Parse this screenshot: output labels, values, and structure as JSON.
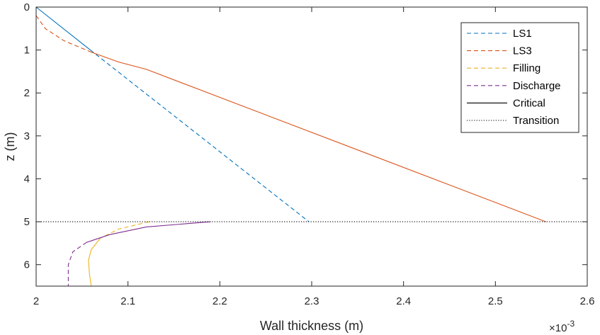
{
  "chart_data": {
    "type": "line",
    "xlabel": "Wall thickness (m)",
    "ylabel": "z (m)",
    "x_exponent": "×10",
    "x_exponent_power": "-3",
    "x_scale_factor": 0.001,
    "xlim": [
      2.0,
      2.6
    ],
    "ylim": [
      0,
      6.5
    ],
    "y_reversed": true,
    "x_ticks": [
      "2",
      "2.1",
      "2.2",
      "2.3",
      "2.4",
      "2.5",
      "2.6"
    ],
    "x_tick_values": [
      2.0,
      2.1,
      2.2,
      2.3,
      2.4,
      2.5,
      2.6
    ],
    "y_ticks": [
      "0",
      "1",
      "2",
      "3",
      "4",
      "5",
      "6"
    ],
    "y_tick_values": [
      0,
      1,
      2,
      3,
      4,
      5,
      6
    ],
    "grid": false,
    "legend_position": "top-right",
    "series": [
      {
        "name": "LS1",
        "color": "#0072BD",
        "points": [
          [
            2.0,
            0.0
          ],
          [
            2.297,
            5.0
          ]
        ],
        "segments": [
          {
            "style": "solid",
            "points": [
              [
                2.0,
                0.0
              ],
              [
                2.059,
                1.0
              ]
            ]
          },
          {
            "style": "dashed",
            "points": [
              [
                2.059,
                1.0
              ],
              [
                2.297,
                5.0
              ]
            ]
          }
        ]
      },
      {
        "name": "LS3",
        "color": "#D95319",
        "points": [
          [
            2.0,
            0.2
          ],
          [
            2.01,
            0.5
          ],
          [
            2.03,
            0.78
          ],
          [
            2.06,
            1.05
          ],
          [
            2.09,
            1.28
          ],
          [
            2.12,
            1.45
          ],
          [
            2.555,
            5.0
          ]
        ],
        "segments": [
          {
            "style": "dashed",
            "points": [
              [
                2.0,
                0.2
              ],
              [
                2.01,
                0.5
              ],
              [
                2.03,
                0.78
              ],
              [
                2.06,
                1.05
              ]
            ]
          },
          {
            "style": "solid",
            "points": [
              [
                2.06,
                1.05
              ],
              [
                2.09,
                1.28
              ],
              [
                2.12,
                1.45
              ],
              [
                2.555,
                5.0
              ]
            ]
          }
        ]
      },
      {
        "name": "Filling",
        "color": "#EDB120",
        "points": [
          [
            2.123,
            5.0
          ],
          [
            2.09,
            5.17
          ],
          [
            2.07,
            5.38
          ],
          [
            2.06,
            5.65
          ],
          [
            2.057,
            5.9
          ],
          [
            2.058,
            6.2
          ],
          [
            2.06,
            6.5
          ]
        ],
        "segments": [
          {
            "style": "dashed",
            "points": [
              [
                2.123,
                5.0
              ],
              [
                2.09,
                5.17
              ],
              [
                2.07,
                5.38
              ]
            ]
          },
          {
            "style": "solid",
            "points": [
              [
                2.07,
                5.38
              ],
              [
                2.06,
                5.65
              ],
              [
                2.057,
                5.9
              ],
              [
                2.058,
                6.2
              ],
              [
                2.06,
                6.5
              ]
            ]
          }
        ]
      },
      {
        "name": "Discharge",
        "color": "#7E2F8E",
        "points": [
          [
            2.19,
            5.0
          ],
          [
            2.12,
            5.12
          ],
          [
            2.08,
            5.3
          ],
          [
            2.055,
            5.48
          ],
          [
            2.04,
            5.7
          ],
          [
            2.035,
            6.0
          ],
          [
            2.035,
            6.5
          ]
        ],
        "segments": [
          {
            "style": "solid",
            "points": [
              [
                2.19,
                5.0
              ],
              [
                2.12,
                5.12
              ],
              [
                2.08,
                5.3
              ],
              [
                2.055,
                5.48
              ]
            ]
          },
          {
            "style": "dashed",
            "points": [
              [
                2.055,
                5.48
              ],
              [
                2.04,
                5.7
              ],
              [
                2.035,
                6.0
              ],
              [
                2.035,
                6.5
              ]
            ]
          }
        ]
      },
      {
        "name": "Critical",
        "color": "#000000",
        "style": "solid",
        "points": []
      },
      {
        "name": "Transition",
        "color": "#000000",
        "style": "dotted",
        "points": [
          [
            2.0,
            5.0
          ],
          [
            2.6,
            5.0
          ]
        ]
      }
    ],
    "legend": [
      {
        "label": "LS1",
        "color": "#0072BD",
        "style": "dashed"
      },
      {
        "label": "LS3",
        "color": "#D95319",
        "style": "dashed"
      },
      {
        "label": "Filling",
        "color": "#EDB120",
        "style": "dashed"
      },
      {
        "label": "Discharge",
        "color": "#7E2F8E",
        "style": "dashed"
      },
      {
        "label": "Critical",
        "color": "#000000",
        "style": "solid"
      },
      {
        "label": "Transition",
        "color": "#000000",
        "style": "dotted"
      }
    ]
  }
}
